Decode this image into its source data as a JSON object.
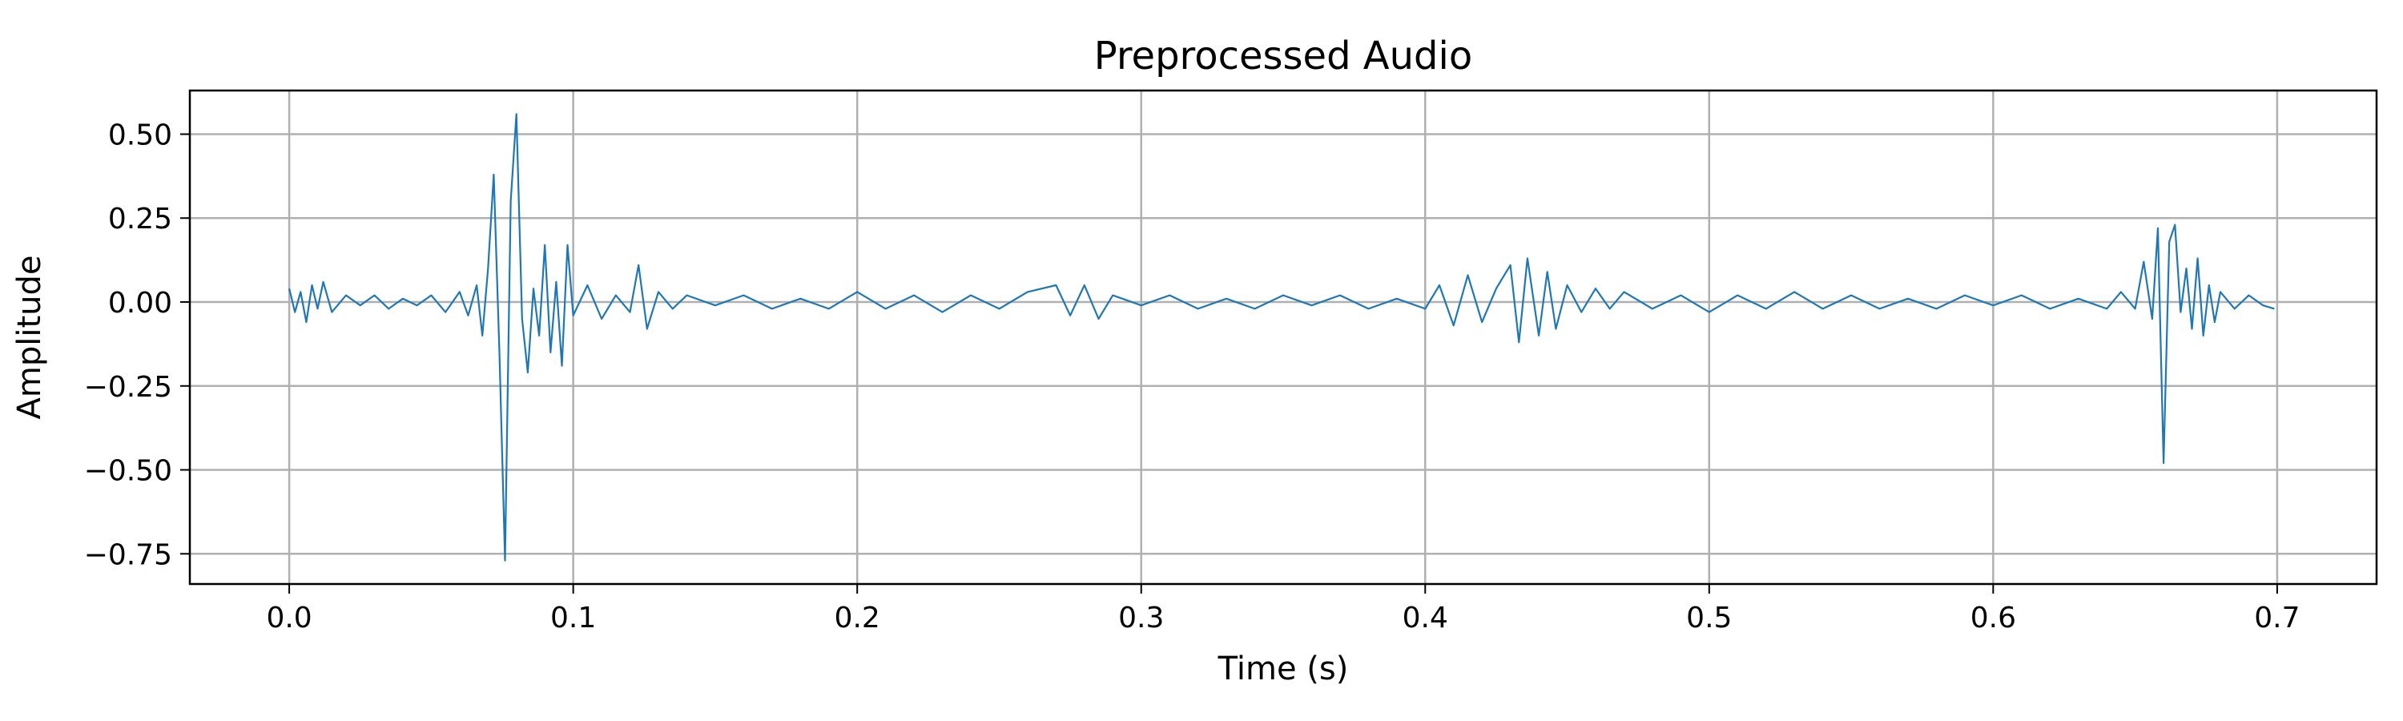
{
  "chart_data": {
    "type": "line",
    "title": "Preprocessed Audio",
    "xlabel": "Time (s)",
    "ylabel": "Amplitude",
    "xlim": [
      -0.035,
      0.735
    ],
    "ylim": [
      -0.84,
      0.63
    ],
    "xticks": [
      0.0,
      0.1,
      0.2,
      0.3,
      0.4,
      0.5,
      0.6,
      0.7
    ],
    "xtick_labels": [
      "0.0",
      "0.1",
      "0.2",
      "0.3",
      "0.4",
      "0.5",
      "0.6",
      "0.7"
    ],
    "yticks": [
      0.5,
      0.25,
      0.0,
      -0.25,
      -0.5,
      -0.75
    ],
    "ytick_labels": [
      "0.50",
      "0.25",
      "0.00",
      "−0.25",
      "−0.50",
      "−0.75"
    ],
    "grid": true,
    "colors": {
      "series": "#1f77b4",
      "grid": "#b0b0b0",
      "axes": "#000000"
    },
    "series": [
      {
        "x": [
          0.0,
          0.002,
          0.004,
          0.006,
          0.008,
          0.01,
          0.012,
          0.015,
          0.02,
          0.025,
          0.03,
          0.035,
          0.04,
          0.045,
          0.05,
          0.055,
          0.06,
          0.063,
          0.066,
          0.068,
          0.07,
          0.072,
          0.074,
          0.076,
          0.078,
          0.08,
          0.082,
          0.084,
          0.086,
          0.088,
          0.09,
          0.092,
          0.094,
          0.096,
          0.098,
          0.1,
          0.105,
          0.11,
          0.115,
          0.12,
          0.123,
          0.126,
          0.13,
          0.135,
          0.14,
          0.15,
          0.16,
          0.17,
          0.18,
          0.19,
          0.2,
          0.21,
          0.22,
          0.23,
          0.24,
          0.25,
          0.26,
          0.27,
          0.275,
          0.28,
          0.285,
          0.29,
          0.3,
          0.31,
          0.32,
          0.33,
          0.34,
          0.35,
          0.36,
          0.37,
          0.38,
          0.39,
          0.4,
          0.405,
          0.41,
          0.415,
          0.42,
          0.425,
          0.43,
          0.433,
          0.436,
          0.44,
          0.443,
          0.446,
          0.45,
          0.455,
          0.46,
          0.465,
          0.47,
          0.48,
          0.49,
          0.5,
          0.51,
          0.52,
          0.53,
          0.54,
          0.55,
          0.56,
          0.57,
          0.58,
          0.59,
          0.6,
          0.61,
          0.62,
          0.63,
          0.64,
          0.645,
          0.65,
          0.653,
          0.656,
          0.658,
          0.66,
          0.662,
          0.664,
          0.666,
          0.668,
          0.67,
          0.672,
          0.674,
          0.676,
          0.678,
          0.68,
          0.685,
          0.69,
          0.695,
          0.699
        ],
        "y": [
          0.04,
          -0.03,
          0.03,
          -0.06,
          0.05,
          -0.02,
          0.06,
          -0.03,
          0.02,
          -0.01,
          0.02,
          -0.02,
          0.01,
          -0.01,
          0.02,
          -0.03,
          0.03,
          -0.04,
          0.05,
          -0.1,
          0.1,
          0.38,
          -0.15,
          -0.77,
          0.3,
          0.56,
          -0.05,
          -0.21,
          0.04,
          -0.1,
          0.17,
          -0.15,
          0.06,
          -0.19,
          0.17,
          -0.04,
          0.05,
          -0.05,
          0.02,
          -0.03,
          0.11,
          -0.08,
          0.03,
          -0.02,
          0.02,
          -0.01,
          0.02,
          -0.02,
          0.01,
          -0.02,
          0.03,
          -0.02,
          0.02,
          -0.03,
          0.02,
          -0.02,
          0.03,
          0.05,
          -0.04,
          0.05,
          -0.05,
          0.02,
          -0.01,
          0.02,
          -0.02,
          0.01,
          -0.02,
          0.02,
          -0.01,
          0.02,
          -0.02,
          0.01,
          -0.02,
          0.05,
          -0.07,
          0.08,
          -0.06,
          0.04,
          0.11,
          -0.12,
          0.13,
          -0.1,
          0.09,
          -0.08,
          0.05,
          -0.03,
          0.04,
          -0.02,
          0.03,
          -0.02,
          0.02,
          -0.03,
          0.02,
          -0.02,
          0.03,
          -0.02,
          0.02,
          -0.02,
          0.01,
          -0.02,
          0.02,
          -0.01,
          0.02,
          -0.02,
          0.01,
          -0.02,
          0.03,
          -0.02,
          0.12,
          -0.05,
          0.22,
          -0.48,
          0.18,
          0.23,
          -0.03,
          0.1,
          -0.08,
          0.13,
          -0.1,
          0.05,
          -0.06,
          0.03,
          -0.02,
          0.02,
          -0.01,
          -0.02
        ]
      }
    ]
  }
}
